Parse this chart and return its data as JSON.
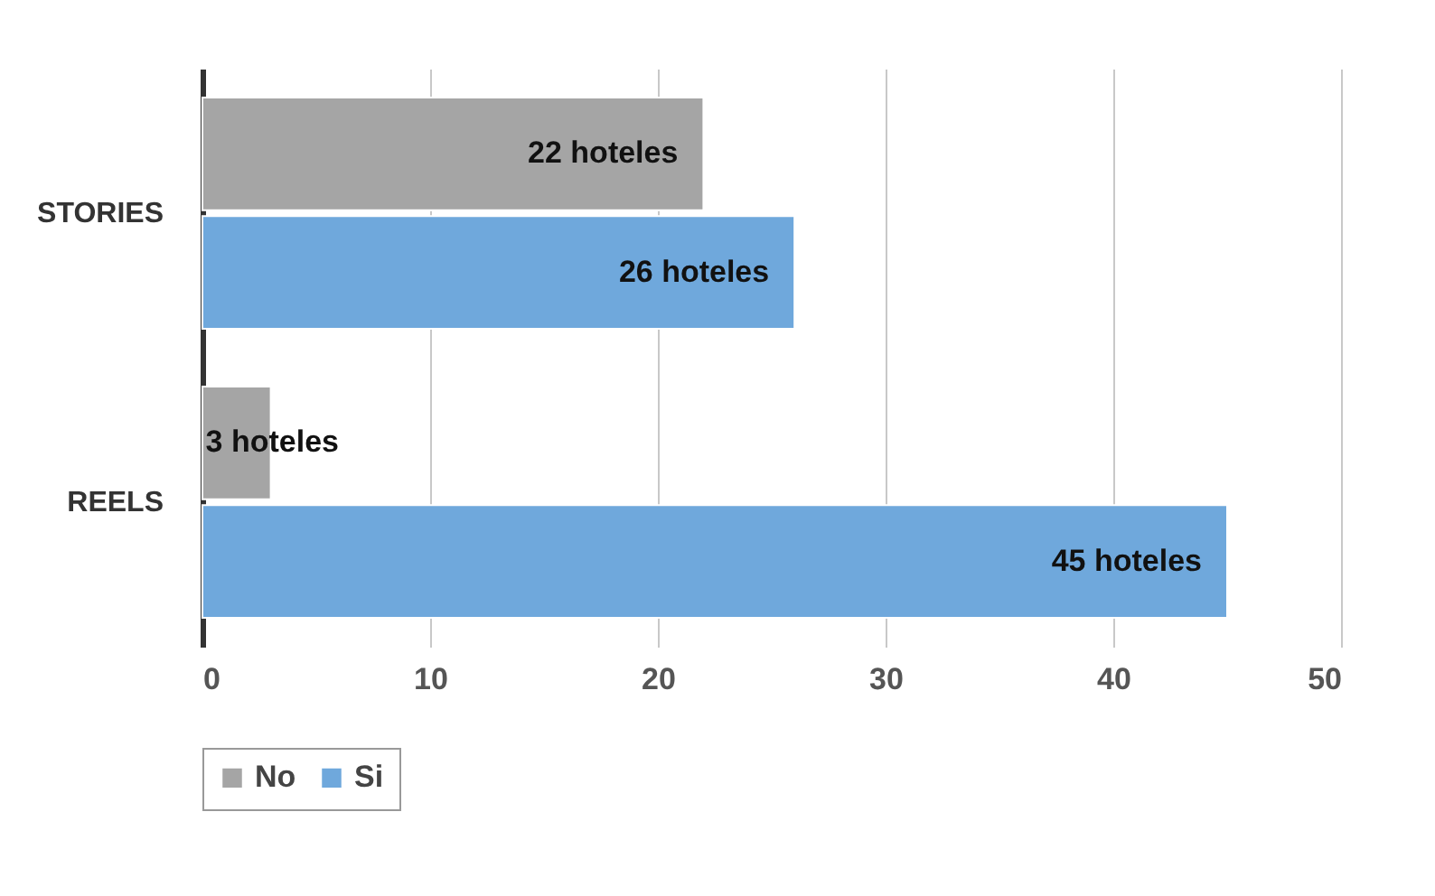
{
  "chart_data": {
    "type": "bar",
    "orientation": "horizontal",
    "categories": [
      "STORIES",
      "REELS"
    ],
    "series": [
      {
        "name": "No",
        "color": "#a5a5a5",
        "values": [
          22,
          3
        ],
        "value_labels": [
          "22 hoteles",
          "3 hoteles"
        ]
      },
      {
        "name": "Si",
        "color": "#6fa8dc",
        "values": [
          26,
          45
        ],
        "value_labels": [
          "26 hoteles",
          "45 hoteles"
        ]
      }
    ],
    "xlim": [
      0,
      50
    ],
    "xticks": [
      0,
      10,
      20,
      30,
      40,
      50
    ],
    "grid": "x",
    "legend": "bottom"
  }
}
